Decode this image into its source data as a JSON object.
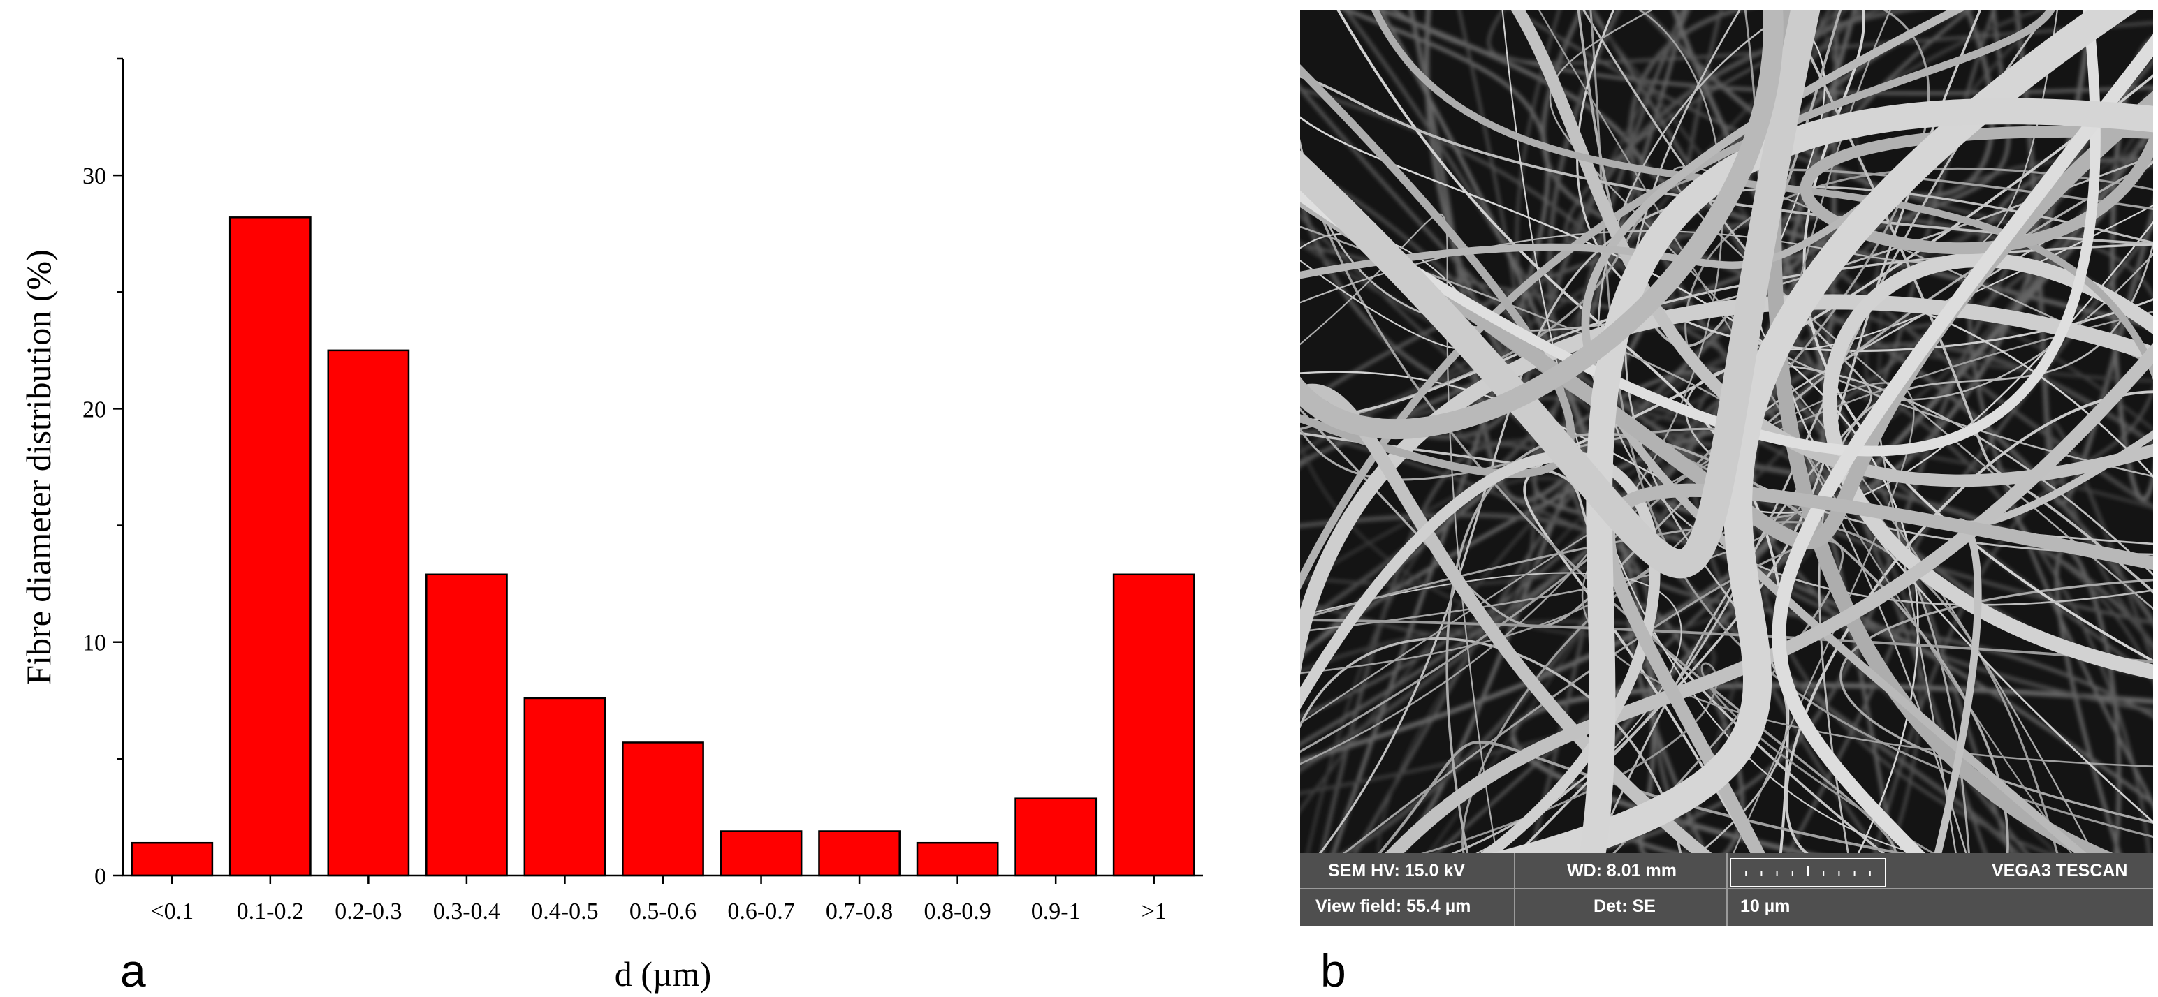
{
  "chart_data": {
    "type": "bar",
    "categories": [
      "<0.1",
      "0.1-0.2",
      "0.2-0.3",
      "0.3-0.4",
      "0.4-0.5",
      "0.5-0.6",
      "0.6-0.7",
      "0.7-0.8",
      "0.8-0.9",
      "0.9-1",
      ">1"
    ],
    "values": [
      1.4,
      28.2,
      22.5,
      12.9,
      7.6,
      5.7,
      1.9,
      1.9,
      1.4,
      3.3,
      12.9
    ],
    "xlabel": "d (µm)",
    "ylabel": "Fibre diameter distribution (%)",
    "ylim": [
      0,
      35
    ],
    "yticks": [
      0,
      10,
      20,
      30
    ],
    "bar_color": "#ff0000",
    "grid": false
  },
  "panels": {
    "a": "a",
    "b": "b"
  },
  "sem": {
    "hv": "SEM HV: 15.0 kV",
    "wd": "WD: 8.01 mm",
    "brand": "VEGA3 TESCAN",
    "view_field": "View field: 55.4 µm",
    "det": "Det: SE",
    "scale": "10 µm"
  }
}
